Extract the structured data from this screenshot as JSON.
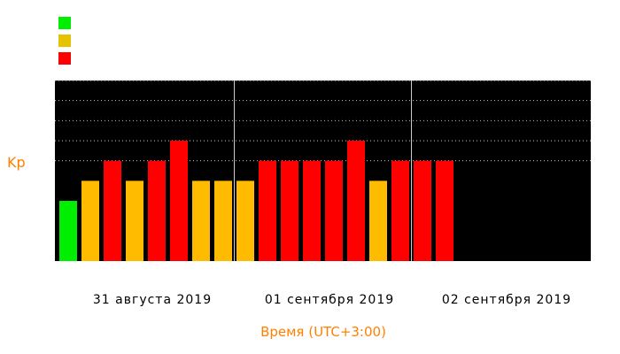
{
  "legend": [
    {
      "color": "#00ee00"
    },
    {
      "color": "#e6c300"
    },
    {
      "color": "#ff0000"
    }
  ],
  "colors": {
    "low": "#00ee00",
    "moderate": "#ffbb00",
    "high": "#ff0000",
    "plot_bg": "#000000",
    "accent": "#ff8000"
  },
  "chart_data": {
    "type": "bar",
    "ylabel": "Kp",
    "xlabel": "Время (UTC+3:00)",
    "ylim": [
      0,
      9
    ],
    "grid": "horizontal-dotted",
    "day_labels": [
      "31 августа 2019",
      "01 сентября 2019",
      "02 сентября 2019"
    ],
    "slots_per_day": 8,
    "values": [
      3,
      4,
      5,
      4,
      5,
      6,
      4,
      4,
      4,
      5,
      5,
      5,
      5,
      6,
      4,
      5,
      5,
      5
    ],
    "levels": [
      "low",
      "moderate",
      "high",
      "moderate",
      "high",
      "high",
      "moderate",
      "moderate",
      "moderate",
      "high",
      "high",
      "high",
      "high",
      "high",
      "moderate",
      "high",
      "high",
      "high"
    ]
  }
}
